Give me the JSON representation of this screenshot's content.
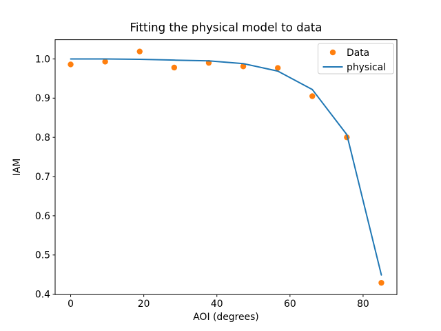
{
  "figure": {
    "background": "#ffffff"
  },
  "chart_data": {
    "type": "scatter",
    "title": "Fitting the physical model to data",
    "xlabel": "AOI (degrees)",
    "ylabel": "IAM",
    "xlim": [
      -4.25,
      89.25
    ],
    "ylim": [
      0.399,
      1.049
    ],
    "grid": false,
    "xticks": {
      "values": [
        0,
        20,
        40,
        60,
        80
      ],
      "labels": [
        "0",
        "20",
        "40",
        "60",
        "80"
      ]
    },
    "yticks": {
      "values": [
        0.4,
        0.5,
        0.6,
        0.7,
        0.8,
        0.9,
        1.0
      ],
      "labels": [
        "0.4",
        "0.5",
        "0.6",
        "0.7",
        "0.8",
        "0.9",
        "1.0"
      ]
    },
    "x": [
      0.0,
      9.44,
      18.89,
      28.33,
      37.78,
      47.22,
      56.67,
      66.11,
      75.56,
      85.0
    ],
    "series": [
      {
        "name": "Data",
        "type": "scatter",
        "color": "#ff7f0e",
        "marker": "circle",
        "values": [
          0.986,
          0.993,
          1.019,
          0.978,
          0.99,
          0.981,
          0.977,
          0.905,
          0.8,
          0.429
        ]
      },
      {
        "name": "physical",
        "type": "line",
        "color": "#1f77b4",
        "values": [
          1.0,
          1.0,
          0.999,
          0.997,
          0.995,
          0.988,
          0.969,
          0.922,
          0.807,
          0.449
        ]
      }
    ],
    "legend": {
      "position": "upper right",
      "border_color": "#cccccc",
      "entries": [
        {
          "label": "Data",
          "marker": "dot",
          "color": "#ff7f0e"
        },
        {
          "label": "physical",
          "marker": "line",
          "color": "#1f77b4"
        }
      ]
    }
  }
}
